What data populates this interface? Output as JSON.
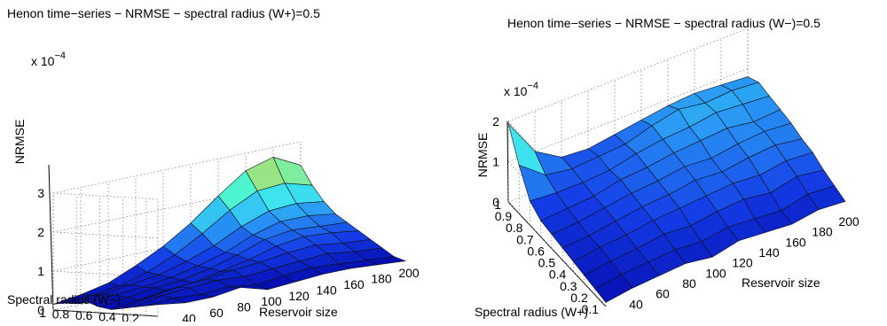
{
  "chart_data": [
    {
      "type": "surface",
      "title": "Henon time−series − NRMSE − spectral radius (W+)=0.5",
      "xlabel": "Reservoir size",
      "ylabel": "Spectral radius (W−)",
      "zlabel": "NRMSE",
      "z_exponent": "x 10",
      "z_exponent_power": "−4",
      "x": [
        20,
        40,
        60,
        80,
        100,
        120,
        140,
        160,
        180,
        200
      ],
      "y": [
        0.1,
        0.2,
        0.3,
        0.4,
        0.5,
        0.6,
        0.7,
        0.8,
        0.9,
        1.0
      ],
      "xlim": [
        20,
        200
      ],
      "ylim": [
        0.1,
        1.0
      ],
      "zlim": [
        0,
        3
      ],
      "xticks": [
        "40",
        "60",
        "80",
        "100",
        "120",
        "140",
        "160",
        "180",
        "200"
      ],
      "yticks": [
        "0.2",
        "0.4",
        "0.6",
        "0.8",
        "1"
      ],
      "zticks": [
        "0",
        "1",
        "2",
        "3"
      ],
      "z": [
        [
          0.3,
          0.2,
          0.2,
          0.3,
          0.1,
          0.15,
          0.2,
          0.2,
          0.15,
          0.1
        ],
        [
          0.25,
          0.3,
          0.25,
          0.3,
          0.2,
          0.3,
          0.35,
          0.3,
          0.25,
          0.2
        ],
        [
          0.2,
          0.35,
          0.4,
          0.45,
          0.4,
          0.45,
          0.5,
          0.55,
          0.45,
          0.4
        ],
        [
          0.15,
          0.3,
          0.4,
          0.45,
          0.55,
          0.6,
          0.7,
          0.75,
          0.65,
          0.6
        ],
        [
          0.1,
          0.2,
          0.3,
          0.35,
          0.5,
          0.65,
          0.85,
          0.95,
          0.9,
          0.8
        ],
        [
          0.15,
          0.25,
          0.35,
          0.4,
          0.55,
          0.75,
          1.0,
          1.1,
          1.05,
          1.0
        ],
        [
          0.25,
          0.3,
          0.35,
          0.45,
          0.6,
          0.8,
          1.1,
          1.3,
          1.3,
          1.2
        ],
        [
          0.2,
          0.3,
          0.4,
          0.5,
          0.7,
          0.95,
          1.3,
          1.55,
          1.6,
          1.5
        ],
        [
          0.2,
          0.25,
          0.35,
          0.55,
          0.85,
          1.25,
          1.7,
          2.05,
          2.1,
          1.9
        ],
        [
          0.15,
          0.25,
          0.4,
          0.7,
          1.05,
          1.5,
          2.05,
          2.55,
          2.75,
          2.4
        ]
      ]
    },
    {
      "type": "surface",
      "title": "Henon time−series − NRMSE − spectral radius (W−)=0.5",
      "xlabel": "Reservoir size",
      "ylabel": "Spectral radius (W+)",
      "zlabel": "NRMSE",
      "z_exponent": "x 10",
      "z_exponent_power": "−4",
      "x": [
        20,
        40,
        60,
        80,
        100,
        120,
        140,
        160,
        180,
        200
      ],
      "y": [
        0.1,
        0.2,
        0.3,
        0.4,
        0.5,
        0.6,
        0.7,
        0.8,
        0.9,
        1.0
      ],
      "xlim": [
        20,
        200
      ],
      "ylim": [
        0.1,
        1.0
      ],
      "zlim": [
        0,
        2
      ],
      "xticks": [
        "40",
        "60",
        "80",
        "100",
        "120",
        "140",
        "160",
        "180",
        "200"
      ],
      "yticks": [
        "0.1",
        "0.2",
        "0.3",
        "0.4",
        "0.5",
        "0.6",
        "0.7",
        "0.8",
        "0.9",
        "1"
      ],
      "zticks": [
        "0",
        "1",
        "2"
      ],
      "z": [
        [
          0.1,
          0.2,
          0.25,
          0.3,
          0.2,
          0.35,
          0.3,
          0.25,
          0.35,
          0.3
        ],
        [
          0.15,
          0.25,
          0.3,
          0.35,
          0.3,
          0.4,
          0.35,
          0.3,
          0.45,
          0.4
        ],
        [
          0.2,
          0.3,
          0.35,
          0.45,
          0.4,
          0.5,
          0.55,
          0.45,
          0.6,
          0.5
        ],
        [
          0.25,
          0.35,
          0.4,
          0.5,
          0.55,
          0.6,
          0.65,
          0.6,
          0.7,
          0.65
        ],
        [
          0.3,
          0.35,
          0.45,
          0.55,
          0.6,
          0.7,
          0.65,
          0.75,
          0.8,
          0.7
        ],
        [
          0.35,
          0.4,
          0.5,
          0.6,
          0.65,
          0.75,
          0.7,
          0.8,
          0.85,
          0.8
        ],
        [
          0.4,
          0.45,
          0.5,
          0.65,
          0.7,
          0.8,
          0.85,
          0.9,
          0.8,
          0.85
        ],
        [
          0.6,
          0.55,
          0.55,
          0.6,
          0.75,
          0.85,
          0.9,
          1.0,
          0.95,
          0.9
        ],
        [
          1.2,
          0.7,
          0.6,
          0.65,
          0.7,
          0.9,
          1.05,
          0.95,
          1.0,
          0.95
        ],
        [
          1.95,
          1.0,
          0.6,
          0.55,
          0.65,
          0.75,
          0.85,
          0.9,
          0.85,
          0.8
        ]
      ]
    }
  ]
}
